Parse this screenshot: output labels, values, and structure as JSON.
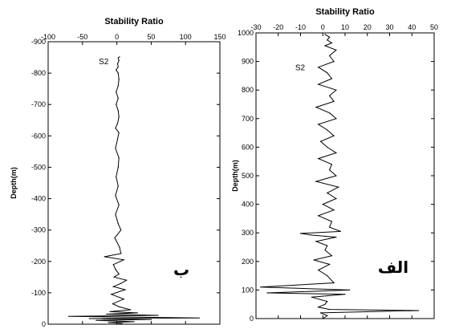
{
  "chart_data": [
    {
      "type": "line",
      "orientation": "depth-profile",
      "panel_label": "ب",
      "title": "Stability Ratio",
      "xlabel": "",
      "ylabel": "Depth(m)",
      "xlim": [
        -100,
        150
      ],
      "ylim": [
        -900,
        0
      ],
      "x_ticks": [
        "-100",
        "-50",
        "0",
        "50",
        "100",
        "150"
      ],
      "y_ticks": [
        "0",
        "-100",
        "-200",
        "-300",
        "-400",
        "-500",
        "-600",
        "-700",
        "-800",
        "-900"
      ],
      "annotation": "S2",
      "annotation_depth": -838,
      "annotation_x": -12,
      "grid": false,
      "series": [
        {
          "x": [
            0,
            8,
            -12,
            25,
            -30,
            50,
            -40,
            120,
            -70,
            60,
            -15,
            30,
            -10,
            20,
            4,
            -6,
            10,
            -8,
            12,
            -5,
            6,
            14,
            -4,
            3,
            -2,
            -5,
            10,
            -18,
            6,
            4,
            -3,
            6,
            2,
            -2,
            3,
            -2,
            2,
            -1,
            2,
            3,
            -2,
            1,
            3,
            -2,
            1,
            3,
            2,
            -1,
            2,
            -1,
            2,
            3,
            2,
            -1,
            2,
            1,
            3,
            2,
            4
          ],
          "y": [
            0,
            -2,
            -5,
            -8,
            -12,
            -15,
            -18,
            -20,
            -25,
            -28,
            -32,
            -36,
            -40,
            -46,
            -55,
            -65,
            -80,
            -95,
            -110,
            -120,
            -130,
            -140,
            -150,
            -160,
            -175,
            -190,
            -205,
            -215,
            -225,
            -245,
            -275,
            -300,
            -320,
            -350,
            -380,
            -410,
            -440,
            -470,
            -500,
            -530,
            -560,
            -590,
            -610,
            -625,
            -640,
            -660,
            -680,
            -700,
            -720,
            -740,
            -760,
            -780,
            -800,
            -810,
            -820,
            -830,
            -840,
            -848,
            -852
          ]
        }
      ]
    },
    {
      "type": "line",
      "orientation": "depth-profile",
      "panel_label": "الف",
      "title": "Stability Ratio",
      "xlabel": "",
      "ylabel": "Depth(m)",
      "xlim": [
        -30,
        50
      ],
      "ylim": [
        1000,
        0
      ],
      "x_ticks": [
        "-30",
        "-20",
        "-10",
        "0",
        "10",
        "20",
        "30",
        "40",
        "50"
      ],
      "y_ticks": [
        "0",
        "100",
        "200",
        "300",
        "400",
        "500",
        "600",
        "700",
        "800",
        "900",
        "1000"
      ],
      "annotation": "S2",
      "annotation_depth": 880,
      "annotation_x": -8,
      "grid": false,
      "series": [
        {
          "x": [
            0,
            2,
            -1,
            43,
            3,
            -2,
            1,
            2,
            -5,
            10,
            -25,
            12,
            -28,
            5,
            2,
            -2,
            3,
            -4,
            4,
            1,
            2,
            -3,
            3,
            6,
            -5,
            -10,
            8,
            3,
            4,
            -2,
            5,
            0,
            6,
            2,
            7,
            -3,
            6,
            3,
            4,
            -2,
            6,
            2,
            -1,
            5,
            2,
            -2,
            6,
            3,
            -3,
            5,
            3,
            6,
            -2,
            4,
            2,
            -2,
            5,
            3,
            6,
            1,
            4,
            2,
            3,
            1
          ],
          "y": [
            0,
            10,
            20,
            28,
            32,
            40,
            50,
            60,
            75,
            85,
            90,
            100,
            110,
            125,
            150,
            170,
            190,
            205,
            220,
            240,
            255,
            270,
            280,
            285,
            292,
            298,
            305,
            320,
            340,
            360,
            380,
            400,
            420,
            440,
            460,
            480,
            500,
            520,
            540,
            560,
            580,
            600,
            620,
            640,
            660,
            680,
            700,
            720,
            740,
            760,
            780,
            800,
            820,
            840,
            860,
            880,
            900,
            920,
            940,
            955,
            965,
            975,
            985,
            995
          ]
        }
      ]
    }
  ]
}
